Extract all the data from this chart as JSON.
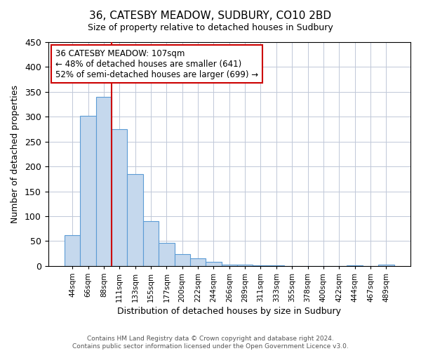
{
  "title": "36, CATESBY MEADOW, SUDBURY, CO10 2BD",
  "subtitle": "Size of property relative to detached houses in Sudbury",
  "xlabel": "Distribution of detached houses by size in Sudbury",
  "ylabel": "Number of detached properties",
  "footer_line1": "Contains HM Land Registry data © Crown copyright and database right 2024.",
  "footer_line2": "Contains public sector information licensed under the Open Government Licence v3.0.",
  "bin_labels": [
    "44sqm",
    "66sqm",
    "88sqm",
    "111sqm",
    "133sqm",
    "155sqm",
    "177sqm",
    "200sqm",
    "222sqm",
    "244sqm",
    "266sqm",
    "289sqm",
    "311sqm",
    "333sqm",
    "355sqm",
    "378sqm",
    "400sqm",
    "422sqm",
    "444sqm",
    "467sqm",
    "489sqm"
  ],
  "bar_values": [
    62,
    302,
    340,
    275,
    185,
    90,
    46,
    24,
    16,
    8,
    3,
    2,
    1,
    1,
    0,
    0,
    0,
    0,
    1,
    0,
    2
  ],
  "bar_color": "#c5d8ed",
  "bar_edge_color": "#5b9bd5",
  "vline_color": "#cc0000",
  "annotation_box_color": "#cc0000",
  "annotation_text_line1": "36 CATESBY MEADOW: 107sqm",
  "annotation_text_line2": "← 48% of detached houses are smaller (641)",
  "annotation_text_line3": "52% of semi-detached houses are larger (699) →",
  "ylim": [
    0,
    450
  ],
  "yticks": [
    0,
    50,
    100,
    150,
    200,
    250,
    300,
    350,
    400,
    450
  ],
  "background_color": "#ffffff",
  "grid_color": "#c0c8d8",
  "title_fontsize": 11,
  "subtitle_fontsize": 9,
  "xlabel_fontsize": 9,
  "ylabel_fontsize": 9,
  "annotation_fontsize": 8.5,
  "footer_fontsize": 6.5,
  "footer_color": "#555555"
}
